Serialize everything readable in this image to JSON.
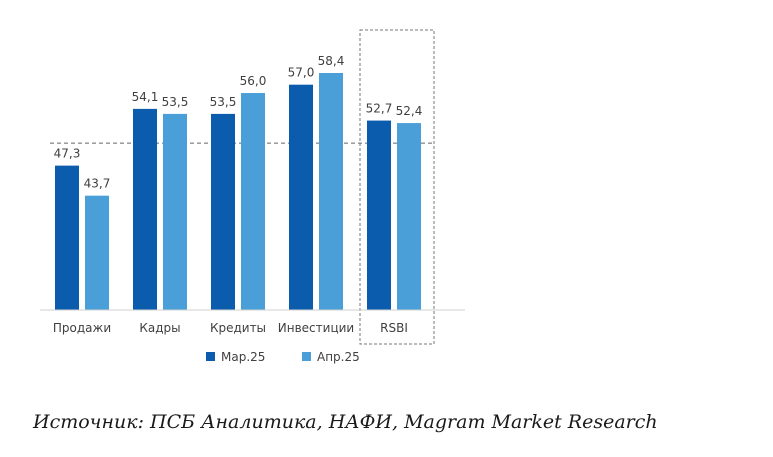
{
  "chart_data": {
    "type": "bar",
    "categories": [
      "Продажи",
      "Кадры",
      "Кредиты",
      "Инвестиции",
      "RSBI"
    ],
    "series": [
      {
        "name": "Мар.25",
        "values": [
          47.3,
          54.1,
          53.5,
          57.0,
          52.7
        ],
        "labels": [
          "47,3",
          "54,1",
          "53,5",
          "57,0",
          "52,7"
        ]
      },
      {
        "name": "Апр.25",
        "values": [
          43.7,
          53.5,
          56.0,
          58.4,
          52.4
        ],
        "labels": [
          "43,7",
          "53,5",
          "56,0",
          "58,4",
          "52,4"
        ]
      }
    ],
    "reference_line": 50,
    "ylim": [
      30,
      60
    ],
    "highlighted_category": "RSBI",
    "legend_position": "bottom",
    "grid": false,
    "colors": [
      "#0b5cad",
      "#4a9fd8"
    ]
  },
  "source": "Источник: ПСБ Аналитика, НАФИ, Magram Market Research"
}
